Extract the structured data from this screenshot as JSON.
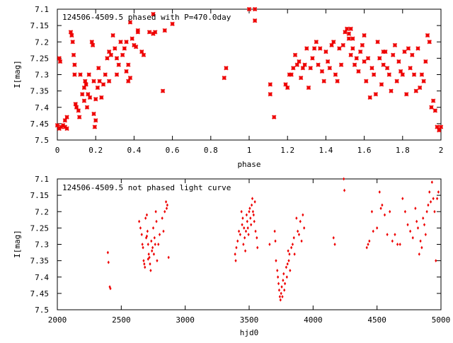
{
  "colors": {
    "points": "#ee0000",
    "axes": "#000000",
    "background": "#ffffff"
  },
  "chart_data": [
    {
      "type": "scatter",
      "title": "124506-4509.5 phased with P=470.0day",
      "xlabel": "phase",
      "ylabel": "I[mag]",
      "xlim": [
        0,
        2
      ],
      "ylim": [
        7.5,
        7.1
      ],
      "y_inverted": true,
      "grid": false,
      "xticks": [
        "0",
        "0.2",
        "0.4",
        "0.6",
        "0.8",
        "1",
        "1.2",
        "1.4",
        "1.6",
        "1.8",
        "2"
      ],
      "yticks": [
        "7.1",
        "7.15",
        "7.2",
        "7.25",
        "7.3",
        "7.35",
        "7.4",
        "7.45",
        "7.5"
      ],
      "marker": "cross",
      "points": [
        [
          0.0,
          7.455
        ],
        [
          0.01,
          7.465
        ],
        [
          0.01,
          7.25
        ],
        [
          0.015,
          7.26
        ],
        [
          0.02,
          7.46
        ],
        [
          0.03,
          7.455
        ],
        [
          0.04,
          7.44
        ],
        [
          0.04,
          7.46
        ],
        [
          0.05,
          7.465
        ],
        [
          0.05,
          7.43
        ],
        [
          0.07,
          7.17
        ],
        [
          0.075,
          7.18
        ],
        [
          0.08,
          7.2
        ],
        [
          0.085,
          7.24
        ],
        [
          0.09,
          7.27
        ],
        [
          0.09,
          7.3
        ],
        [
          0.095,
          7.39
        ],
        [
          0.1,
          7.4
        ],
        [
          0.11,
          7.41
        ],
        [
          0.115,
          7.43
        ],
        [
          0.12,
          7.3
        ],
        [
          0.13,
          7.36
        ],
        [
          0.14,
          7.34
        ],
        [
          0.14,
          7.38
        ],
        [
          0.145,
          7.32
        ],
        [
          0.15,
          7.33
        ],
        [
          0.155,
          7.4
        ],
        [
          0.16,
          7.36
        ],
        [
          0.165,
          7.3
        ],
        [
          0.17,
          7.37
        ],
        [
          0.18,
          7.2
        ],
        [
          0.185,
          7.21
        ],
        [
          0.19,
          7.32
        ],
        [
          0.19,
          7.42
        ],
        [
          0.195,
          7.46
        ],
        [
          0.2,
          7.44
        ],
        [
          0.2,
          7.375
        ],
        [
          0.21,
          7.34
        ],
        [
          0.215,
          7.28
        ],
        [
          0.22,
          7.32
        ],
        [
          0.23,
          7.37
        ],
        [
          0.24,
          7.33
        ],
        [
          0.25,
          7.3
        ],
        [
          0.26,
          7.25
        ],
        [
          0.27,
          7.23
        ],
        [
          0.27,
          7.32
        ],
        [
          0.28,
          7.24
        ],
        [
          0.29,
          7.18
        ],
        [
          0.3,
          7.22
        ],
        [
          0.31,
          7.25
        ],
        [
          0.31,
          7.3
        ],
        [
          0.32,
          7.27
        ],
        [
          0.33,
          7.2
        ],
        [
          0.34,
          7.24
        ],
        [
          0.35,
          7.22
        ],
        [
          0.36,
          7.2
        ],
        [
          0.36,
          7.29
        ],
        [
          0.37,
          7.27
        ],
        [
          0.37,
          7.32
        ],
        [
          0.38,
          7.31
        ],
        [
          0.38,
          7.14
        ],
        [
          0.39,
          7.19
        ],
        [
          0.4,
          7.21
        ],
        [
          0.41,
          7.215
        ],
        [
          0.42,
          7.165
        ],
        [
          0.42,
          7.17
        ],
        [
          0.44,
          7.23
        ],
        [
          0.45,
          7.24
        ],
        [
          0.48,
          7.17
        ],
        [
          0.5,
          7.175
        ],
        [
          0.5,
          7.115
        ],
        [
          0.51,
          7.17
        ],
        [
          0.55,
          7.35
        ],
        [
          0.56,
          7.165
        ],
        [
          0.6,
          7.145
        ],
        [
          0.87,
          7.31
        ],
        [
          0.88,
          7.28
        ],
        [
          1.0,
          7.1
        ],
        [
          1.03,
          7.135
        ],
        [
          1.03,
          7.1
        ],
        [
          1.11,
          7.33
        ],
        [
          1.11,
          7.36
        ],
        [
          1.13,
          7.43
        ],
        [
          1.19,
          7.33
        ],
        [
          1.2,
          7.34
        ],
        [
          1.21,
          7.3
        ],
        [
          1.22,
          7.3
        ],
        [
          1.23,
          7.28
        ],
        [
          1.24,
          7.24
        ],
        [
          1.25,
          7.27
        ],
        [
          1.26,
          7.26
        ],
        [
          1.27,
          7.31
        ],
        [
          1.28,
          7.28
        ],
        [
          1.29,
          7.27
        ],
        [
          1.3,
          7.22
        ],
        [
          1.31,
          7.34
        ],
        [
          1.32,
          7.28
        ],
        [
          1.33,
          7.25
        ],
        [
          1.34,
          7.22
        ],
        [
          1.35,
          7.2
        ],
        [
          1.36,
          7.27
        ],
        [
          1.37,
          7.22
        ],
        [
          1.38,
          7.29
        ],
        [
          1.39,
          7.32
        ],
        [
          1.4,
          7.23
        ],
        [
          1.41,
          7.26
        ],
        [
          1.42,
          7.28
        ],
        [
          1.43,
          7.21
        ],
        [
          1.44,
          7.2
        ],
        [
          1.45,
          7.3
        ],
        [
          1.46,
          7.32
        ],
        [
          1.47,
          7.22
        ],
        [
          1.48,
          7.27
        ],
        [
          1.49,
          7.21
        ],
        [
          1.5,
          7.17
        ],
        [
          1.51,
          7.16
        ],
        [
          1.52,
          7.19
        ],
        [
          1.53,
          7.24
        ],
        [
          1.54,
          7.22
        ],
        [
          1.55,
          7.27
        ],
        [
          1.56,
          7.25
        ],
        [
          1.57,
          7.29
        ],
        [
          1.58,
          7.23
        ],
        [
          1.59,
          7.21
        ],
        [
          1.6,
          7.26
        ],
        [
          1.61,
          7.32
        ],
        [
          1.62,
          7.25
        ],
        [
          1.63,
          7.37
        ],
        [
          1.64,
          7.28
        ],
        [
          1.65,
          7.3
        ],
        [
          1.66,
          7.36
        ],
        [
          1.67,
          7.2
        ],
        [
          1.68,
          7.25
        ],
        [
          1.69,
          7.33
        ],
        [
          1.7,
          7.27
        ],
        [
          1.71,
          7.23
        ],
        [
          1.72,
          7.28
        ],
        [
          1.73,
          7.3
        ],
        [
          1.74,
          7.35
        ],
        [
          1.75,
          7.24
        ],
        [
          1.76,
          7.21
        ],
        [
          1.77,
          7.32
        ],
        [
          1.78,
          7.26
        ],
        [
          1.79,
          7.29
        ],
        [
          1.8,
          7.3
        ],
        [
          1.81,
          7.23
        ],
        [
          1.82,
          7.36
        ],
        [
          1.83,
          7.22
        ],
        [
          1.84,
          7.28
        ],
        [
          1.85,
          7.24
        ],
        [
          1.86,
          7.3
        ],
        [
          1.87,
          7.35
        ],
        [
          1.88,
          7.22
        ],
        [
          1.89,
          7.34
        ],
        [
          1.9,
          7.3
        ],
        [
          1.91,
          7.32
        ],
        [
          1.92,
          7.26
        ],
        [
          1.93,
          7.18
        ],
        [
          1.94,
          7.2
        ],
        [
          1.95,
          7.4
        ],
        [
          1.96,
          7.38
        ],
        [
          1.97,
          7.41
        ],
        [
          1.98,
          7.46
        ],
        [
          1.99,
          7.47
        ],
        [
          2.0,
          7.46
        ],
        [
          1.52,
          7.175
        ],
        [
          1.53,
          7.16
        ],
        [
          1.54,
          7.19
        ],
        [
          1.6,
          7.18
        ],
        [
          1.7,
          7.23
        ]
      ]
    },
    {
      "type": "scatter",
      "title": "124506-4509.5 not phased light curve",
      "xlabel": "hjd0",
      "ylabel": "I[mag]",
      "xlim": [
        2000,
        5000
      ],
      "ylim": [
        7.5,
        7.1
      ],
      "y_inverted": true,
      "grid": false,
      "xticks": [
        "2000",
        "2500",
        "3000",
        "3500",
        "4000",
        "4500",
        "5000"
      ],
      "yticks": [
        "7.1",
        "7.15",
        "7.2",
        "7.25",
        "7.3",
        "7.35",
        "7.4",
        "7.45",
        "7.5"
      ],
      "marker": "dot",
      "points": [
        [
          2395,
          7.325
        ],
        [
          2400,
          7.355
        ],
        [
          2410,
          7.43
        ],
        [
          2415,
          7.435
        ],
        [
          2640,
          7.23
        ],
        [
          2650,
          7.25
        ],
        [
          2660,
          7.27
        ],
        [
          2665,
          7.3
        ],
        [
          2670,
          7.31
        ],
        [
          2675,
          7.35
        ],
        [
          2680,
          7.36
        ],
        [
          2685,
          7.37
        ],
        [
          2690,
          7.22
        ],
        [
          2695,
          7.28
        ],
        [
          2700,
          7.21
        ],
        [
          2705,
          7.26
        ],
        [
          2710,
          7.3
        ],
        [
          2715,
          7.33
        ],
        [
          2720,
          7.34
        ],
        [
          2725,
          7.36
        ],
        [
          2730,
          7.38
        ],
        [
          2735,
          7.29
        ],
        [
          2740,
          7.32
        ],
        [
          2745,
          7.31
        ],
        [
          2750,
          7.25
        ],
        [
          2755,
          7.33
        ],
        [
          2760,
          7.28
        ],
        [
          2765,
          7.3
        ],
        [
          2770,
          7.2
        ],
        [
          2775,
          7.23
        ],
        [
          2780,
          7.35
        ],
        [
          2790,
          7.3
        ],
        [
          2800,
          7.27
        ],
        [
          2820,
          7.22
        ],
        [
          2830,
          7.26
        ],
        [
          2840,
          7.2
        ],
        [
          2850,
          7.17
        ],
        [
          2855,
          7.19
        ],
        [
          2860,
          7.18
        ],
        [
          2870,
          7.34
        ],
        [
          2700,
          7.275
        ],
        [
          2710,
          7.345
        ],
        [
          3390,
          7.33
        ],
        [
          3395,
          7.35
        ],
        [
          3400,
          7.31
        ],
        [
          3410,
          7.29
        ],
        [
          3420,
          7.26
        ],
        [
          3430,
          7.27
        ],
        [
          3440,
          7.2
        ],
        [
          3445,
          7.24
        ],
        [
          3450,
          7.22
        ],
        [
          3455,
          7.3
        ],
        [
          3460,
          7.25
        ],
        [
          3465,
          7.28
        ],
        [
          3470,
          7.32
        ],
        [
          3475,
          7.26
        ],
        [
          3480,
          7.21
        ],
        [
          3485,
          7.23
        ],
        [
          3490,
          7.25
        ],
        [
          3495,
          7.27
        ],
        [
          3500,
          7.2
        ],
        [
          3505,
          7.19
        ],
        [
          3510,
          7.22
        ],
        [
          3515,
          7.24
        ],
        [
          3520,
          7.18
        ],
        [
          3525,
          7.16
        ],
        [
          3530,
          7.2
        ],
        [
          3535,
          7.21
        ],
        [
          3540,
          7.23
        ],
        [
          3545,
          7.17
        ],
        [
          3550,
          7.26
        ],
        [
          3560,
          7.28
        ],
        [
          3565,
          7.31
        ],
        [
          3660,
          7.3
        ],
        [
          3700,
          7.26
        ],
        [
          3705,
          7.29
        ],
        [
          3710,
          7.35
        ],
        [
          3720,
          7.38
        ],
        [
          3725,
          7.4
        ],
        [
          3730,
          7.42
        ],
        [
          3735,
          7.44
        ],
        [
          3740,
          7.46
        ],
        [
          3745,
          7.47
        ],
        [
          3750,
          7.45
        ],
        [
          3755,
          7.43
        ],
        [
          3760,
          7.46
        ],
        [
          3765,
          7.41
        ],
        [
          3770,
          7.39
        ],
        [
          3775,
          7.44
        ],
        [
          3780,
          7.42
        ],
        [
          3790,
          7.37
        ],
        [
          3795,
          7.4
        ],
        [
          3800,
          7.36
        ],
        [
          3805,
          7.32
        ],
        [
          3810,
          7.35
        ],
        [
          3815,
          7.33
        ],
        [
          3820,
          7.38
        ],
        [
          3830,
          7.31
        ],
        [
          3840,
          7.3
        ],
        [
          3850,
          7.28
        ],
        [
          3855,
          7.33
        ],
        [
          3870,
          7.22
        ],
        [
          3880,
          7.26
        ],
        [
          3890,
          7.27
        ],
        [
          3900,
          7.23
        ],
        [
          3910,
          7.29
        ],
        [
          3920,
          7.21
        ],
        [
          3930,
          7.25
        ],
        [
          4160,
          7.28
        ],
        [
          4170,
          7.3
        ],
        [
          4240,
          7.1
        ],
        [
          4245,
          7.135
        ],
        [
          4420,
          7.31
        ],
        [
          4430,
          7.3
        ],
        [
          4440,
          7.29
        ],
        [
          4460,
          7.2
        ],
        [
          4470,
          7.26
        ],
        [
          4500,
          7.25
        ],
        [
          4520,
          7.14
        ],
        [
          4530,
          7.19
        ],
        [
          4540,
          7.18
        ],
        [
          4560,
          7.21
        ],
        [
          4580,
          7.27
        ],
        [
          4600,
          7.2
        ],
        [
          4620,
          7.29
        ],
        [
          4640,
          7.27
        ],
        [
          4660,
          7.3
        ],
        [
          4680,
          7.3
        ],
        [
          4700,
          7.16
        ],
        [
          4720,
          7.2
        ],
        [
          4740,
          7.24
        ],
        [
          4760,
          7.26
        ],
        [
          4780,
          7.28
        ],
        [
          4800,
          7.19
        ],
        [
          4810,
          7.23
        ],
        [
          4820,
          7.25
        ],
        [
          4830,
          7.33
        ],
        [
          4840,
          7.29
        ],
        [
          4850,
          7.31
        ],
        [
          4860,
          7.22
        ],
        [
          4870,
          7.24
        ],
        [
          4880,
          7.27
        ],
        [
          4890,
          7.2
        ],
        [
          4900,
          7.18
        ],
        [
          4910,
          7.14
        ],
        [
          4920,
          7.17
        ],
        [
          4930,
          7.11
        ],
        [
          4940,
          7.16
        ],
        [
          4950,
          7.2
        ],
        [
          4960,
          7.35
        ],
        [
          4970,
          7.16
        ],
        [
          4980,
          7.14
        ]
      ]
    }
  ]
}
